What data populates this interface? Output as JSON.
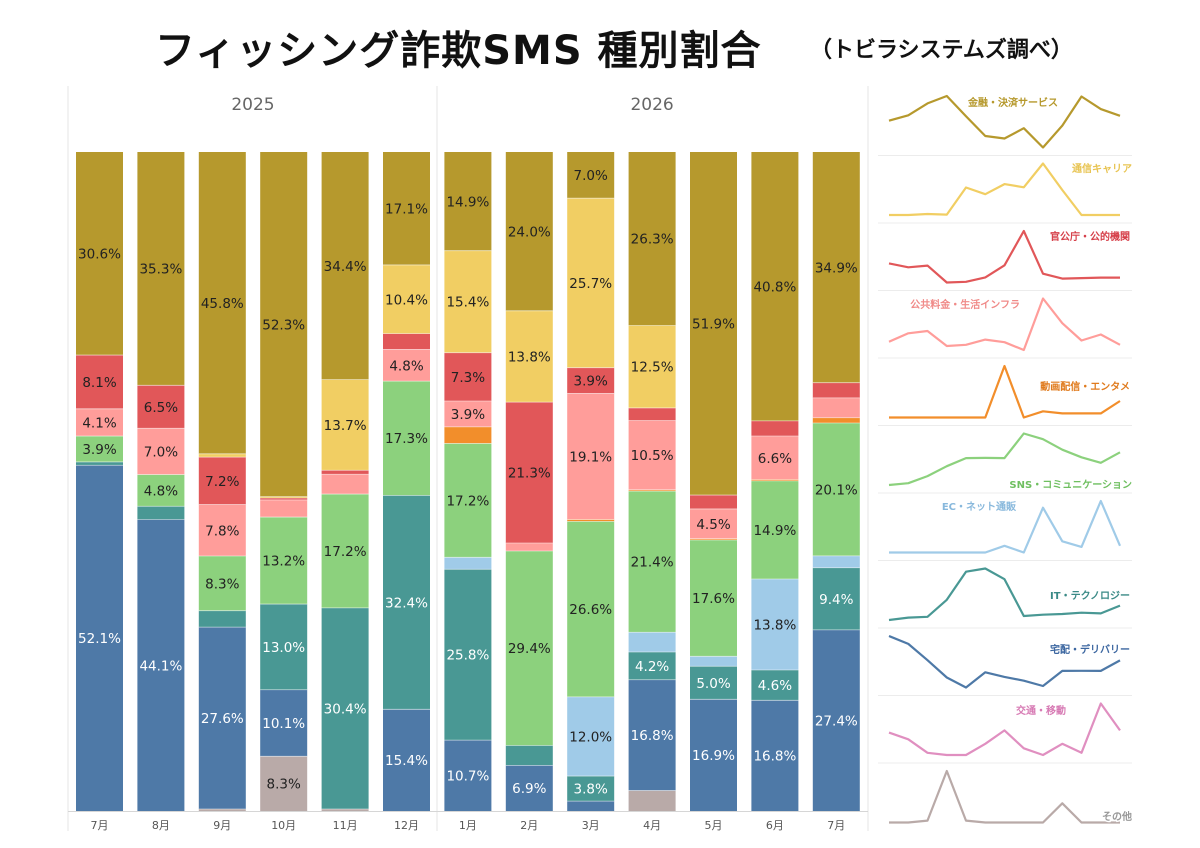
{
  "title": "フィッシング詐欺SMS 種別割合",
  "subtitle": "（トビラシステムズ調べ）",
  "chart_data": {
    "type": "bar",
    "stacked": true,
    "normalized_percent": true,
    "groups": [
      {
        "label": "2025",
        "months": [
          "7月",
          "8月",
          "9月",
          "10月",
          "11月",
          "12月"
        ]
      },
      {
        "label": "2026",
        "months": [
          "1月",
          "2月",
          "3月",
          "4月",
          "5月",
          "6月",
          "7月"
        ]
      }
    ],
    "categories": [
      "7月",
      "8月",
      "9月",
      "10月",
      "11月",
      "12月",
      "1月",
      "2月",
      "3月",
      "4月",
      "5月",
      "6月",
      "7月"
    ],
    "series": [
      {
        "name": "その他",
        "color": "#b9aaa8",
        "values": [
          0,
          0,
          0.3,
          8.3,
          0.3,
          0,
          0,
          0,
          0,
          3.1,
          0,
          0,
          0
        ]
      },
      {
        "name": "宅配・デリバリー",
        "color": "#4e79a7",
        "values": [
          52.1,
          44.1,
          27.6,
          10.1,
          0,
          15.4,
          10.7,
          6.9,
          1.5,
          16.8,
          16.9,
          16.8,
          27.4
        ]
      },
      {
        "name": "IT・テクノロジー",
        "color": "#499894",
        "values": [
          0.5,
          2.0,
          2.5,
          13.0,
          30.4,
          32.4,
          25.8,
          3.0,
          3.8,
          4.2,
          5.0,
          4.6,
          9.4
        ]
      },
      {
        "name": "EC・ネット通販",
        "color": "#a0cbe8",
        "values": [
          0,
          0,
          0,
          0,
          0,
          0,
          1.8,
          0,
          12.0,
          3.0,
          1.5,
          13.8,
          1.8
        ]
      },
      {
        "name": "SNS・コミュニケーション",
        "color": "#8cd17d",
        "values": [
          3.9,
          4.8,
          8.3,
          13.2,
          17.2,
          17.3,
          17.2,
          29.4,
          26.6,
          21.4,
          17.6,
          14.9,
          20.1
        ]
      },
      {
        "name": "動画配信・エンタメ",
        "color": "#f28e2b",
        "values": [
          0,
          0,
          0,
          0,
          0,
          0,
          2.5,
          0,
          0.3,
          0.2,
          0.2,
          0.2,
          0.8
        ]
      },
      {
        "name": "公共料金・生活インフラ",
        "color": "#ff9d9a",
        "values": [
          4.1,
          7.0,
          7.8,
          2.6,
          3.0,
          4.8,
          3.9,
          1.2,
          19.1,
          10.5,
          4.5,
          6.6,
          3.0
        ]
      },
      {
        "name": "官公庁・公的機関",
        "color": "#e15759",
        "values": [
          8.1,
          6.5,
          7.2,
          0.3,
          0.6,
          2.4,
          7.3,
          21.3,
          3.9,
          1.9,
          2.1,
          2.3,
          2.3
        ]
      },
      {
        "name": "通信キャリア",
        "color": "#f1ce63",
        "values": [
          0,
          0,
          0.5,
          0.2,
          13.7,
          10.4,
          15.4,
          13.8,
          25.7,
          12.5,
          0,
          0,
          0
        ]
      },
      {
        "name": "金融・決済サービス",
        "color": "#b6992d",
        "values": [
          30.6,
          35.3,
          45.8,
          52.3,
          34.4,
          17.1,
          14.9,
          24.0,
          7.0,
          26.3,
          51.9,
          40.8,
          34.9
        ]
      }
    ],
    "data_labels": [
      {
        "month_index": 0,
        "series": "宅配・デリバリー",
        "text": "52.1%"
      },
      {
        "month_index": 0,
        "series": "SNS・コミュニケーション",
        "text": "3.9%"
      },
      {
        "month_index": 0,
        "series": "公共料金・生活インフラ",
        "text": "4.1%"
      },
      {
        "month_index": 0,
        "series": "官公庁・公的機関",
        "text": "8.1%"
      },
      {
        "month_index": 0,
        "series": "金融・決済サービス",
        "text": "30.6%"
      },
      {
        "month_index": 1,
        "series": "宅配・デリバリー",
        "text": "44.1%"
      },
      {
        "month_index": 1,
        "series": "SNS・コミュニケーション",
        "text": "4.8%"
      },
      {
        "month_index": 1,
        "series": "公共料金・生活インフラ",
        "text": "7.0%"
      },
      {
        "month_index": 1,
        "series": "官公庁・公的機関",
        "text": "6.5%"
      },
      {
        "month_index": 1,
        "series": "金融・決済サービス",
        "text": "35.3%"
      },
      {
        "month_index": 2,
        "series": "宅配・デリバリー",
        "text": "27.6%"
      },
      {
        "month_index": 2,
        "series": "SNS・コミュニケーション",
        "text": "8.3%"
      },
      {
        "month_index": 2,
        "series": "公共料金・生活インフラ",
        "text": "7.8%"
      },
      {
        "month_index": 2,
        "series": "官公庁・公的機関",
        "text": "7.2%"
      },
      {
        "month_index": 2,
        "series": "金融・決済サービス",
        "text": "45.8%"
      },
      {
        "month_index": 3,
        "series": "その他",
        "text": "8.3%"
      },
      {
        "month_index": 3,
        "series": "宅配・デリバリー",
        "text": "10.1%"
      },
      {
        "month_index": 3,
        "series": "IT・テクノロジー",
        "text": "13.0%"
      },
      {
        "month_index": 3,
        "series": "SNS・コミュニケーション",
        "text": "13.2%"
      },
      {
        "month_index": 3,
        "series": "金融・決済サービス",
        "text": "52.3%"
      },
      {
        "month_index": 4,
        "series": "IT・テクノロジー",
        "text": "30.4%"
      },
      {
        "month_index": 4,
        "series": "SNS・コミュニケーション",
        "text": "17.2%"
      },
      {
        "month_index": 4,
        "series": "通信キャリア",
        "text": "13.7%"
      },
      {
        "month_index": 4,
        "series": "金融・決済サービス",
        "text": "34.4%"
      },
      {
        "month_index": 5,
        "series": "宅配・デリバリー",
        "text": "15.4%"
      },
      {
        "month_index": 5,
        "series": "IT・テクノロジー",
        "text": "32.4%"
      },
      {
        "month_index": 5,
        "series": "SNS・コミュニケーション",
        "text": "17.3%"
      },
      {
        "month_index": 5,
        "series": "公共料金・生活インフラ",
        "text": "4.8%"
      },
      {
        "month_index": 5,
        "series": "通信キャリア",
        "text": "10.4%"
      },
      {
        "month_index": 5,
        "series": "金融・決済サービス",
        "text": "17.1%"
      },
      {
        "month_index": 6,
        "series": "宅配・デリバリー",
        "text": "10.7%"
      },
      {
        "month_index": 6,
        "series": "IT・テクノロジー",
        "text": "25.8%"
      },
      {
        "month_index": 6,
        "series": "SNS・コミュニケーション",
        "text": "17.2%"
      },
      {
        "month_index": 6,
        "series": "公共料金・生活インフラ",
        "text": "3.9%"
      },
      {
        "month_index": 6,
        "series": "官公庁・公的機関",
        "text": "7.3%"
      },
      {
        "month_index": 6,
        "series": "通信キャリア",
        "text": "15.4%"
      },
      {
        "month_index": 6,
        "series": "金融・決済サービス",
        "text": "14.9%"
      },
      {
        "month_index": 7,
        "series": "宅配・デリバリー",
        "text": "6.9%"
      },
      {
        "month_index": 7,
        "series": "SNS・コミュニケーション",
        "text": "29.4%"
      },
      {
        "month_index": 7,
        "series": "官公庁・公的機関",
        "text": "21.3%"
      },
      {
        "month_index": 7,
        "series": "通信キャリア",
        "text": "13.8%"
      },
      {
        "month_index": 7,
        "series": "金融・決済サービス",
        "text": "24.0%"
      },
      {
        "month_index": 8,
        "series": "IT・テクノロジー",
        "text": "3.8%"
      },
      {
        "month_index": 8,
        "series": "EC・ネット通販",
        "text": "12.0%"
      },
      {
        "month_index": 8,
        "series": "SNS・コミュニケーション",
        "text": "26.6%"
      },
      {
        "month_index": 8,
        "series": "公共料金・生活インフラ",
        "text": "19.1%"
      },
      {
        "month_index": 8,
        "series": "官公庁・公的機関",
        "text": "3.9%"
      },
      {
        "month_index": 8,
        "series": "通信キャリア",
        "text": "25.7%"
      },
      {
        "month_index": 8,
        "series": "金融・決済サービス",
        "text": "7.0%"
      },
      {
        "month_index": 9,
        "series": "宅配・デリバリー",
        "text": "16.8%"
      },
      {
        "month_index": 9,
        "series": "IT・テクノロジー",
        "text": "4.2%"
      },
      {
        "month_index": 9,
        "series": "SNS・コミュニケーション",
        "text": "21.4%"
      },
      {
        "month_index": 9,
        "series": "公共料金・生活インフラ",
        "text": "10.5%"
      },
      {
        "month_index": 9,
        "series": "通信キャリア",
        "text": "12.5%"
      },
      {
        "month_index": 9,
        "series": "金融・決済サービス",
        "text": "26.3%"
      },
      {
        "month_index": 10,
        "series": "宅配・デリバリー",
        "text": "16.9%"
      },
      {
        "month_index": 10,
        "series": "IT・テクノロジー",
        "text": "5.0%"
      },
      {
        "month_index": 10,
        "series": "SNS・コミュニケーション",
        "text": "17.6%"
      },
      {
        "month_index": 10,
        "series": "公共料金・生活インフラ",
        "text": "4.5%"
      },
      {
        "month_index": 10,
        "series": "金融・決済サービス",
        "text": "51.9%"
      },
      {
        "month_index": 11,
        "series": "宅配・デリバリー",
        "text": "16.8%"
      },
      {
        "month_index": 11,
        "series": "IT・テクノロジー",
        "text": "4.6%"
      },
      {
        "month_index": 11,
        "series": "EC・ネット通販",
        "text": "13.8%"
      },
      {
        "month_index": 11,
        "series": "SNS・コミュニケーション",
        "text": "14.9%"
      },
      {
        "month_index": 11,
        "series": "公共料金・生活インフラ",
        "text": "6.6%"
      },
      {
        "month_index": 11,
        "series": "金融・決済サービス",
        "text": "40.8%"
      },
      {
        "month_index": 12,
        "series": "宅配・デリバリー",
        "text": "27.4%"
      },
      {
        "month_index": 12,
        "series": "IT・テクノロジー",
        "text": "9.4%"
      },
      {
        "month_index": 12,
        "series": "SNS・コミュニケーション",
        "text": "20.1%"
      },
      {
        "month_index": 12,
        "series": "金融・決済サービス",
        "text": "34.9%"
      }
    ],
    "sparkline_order": [
      "金融・決済サービス",
      "通信キャリア",
      "官公庁・公的機関",
      "公共料金・生活インフラ",
      "動画配信・エンタメ",
      "SNS・コミュニケーション",
      "EC・ネット通販",
      "IT・テクノロジー",
      "宅配・デリバリー",
      "交通・移動",
      "その他"
    ],
    "sparkline_extra_series": [
      {
        "name": "交通・移動",
        "color": "#e08fc0",
        "values": [
          1.5,
          1.2,
          0.6,
          0.5,
          0.5,
          1.0,
          1.6,
          0.8,
          0.5,
          1.0,
          0.6,
          2.8,
          1.6
        ]
      }
    ],
    "ylim": [
      0,
      100
    ],
    "grid": false,
    "legend": "none"
  }
}
